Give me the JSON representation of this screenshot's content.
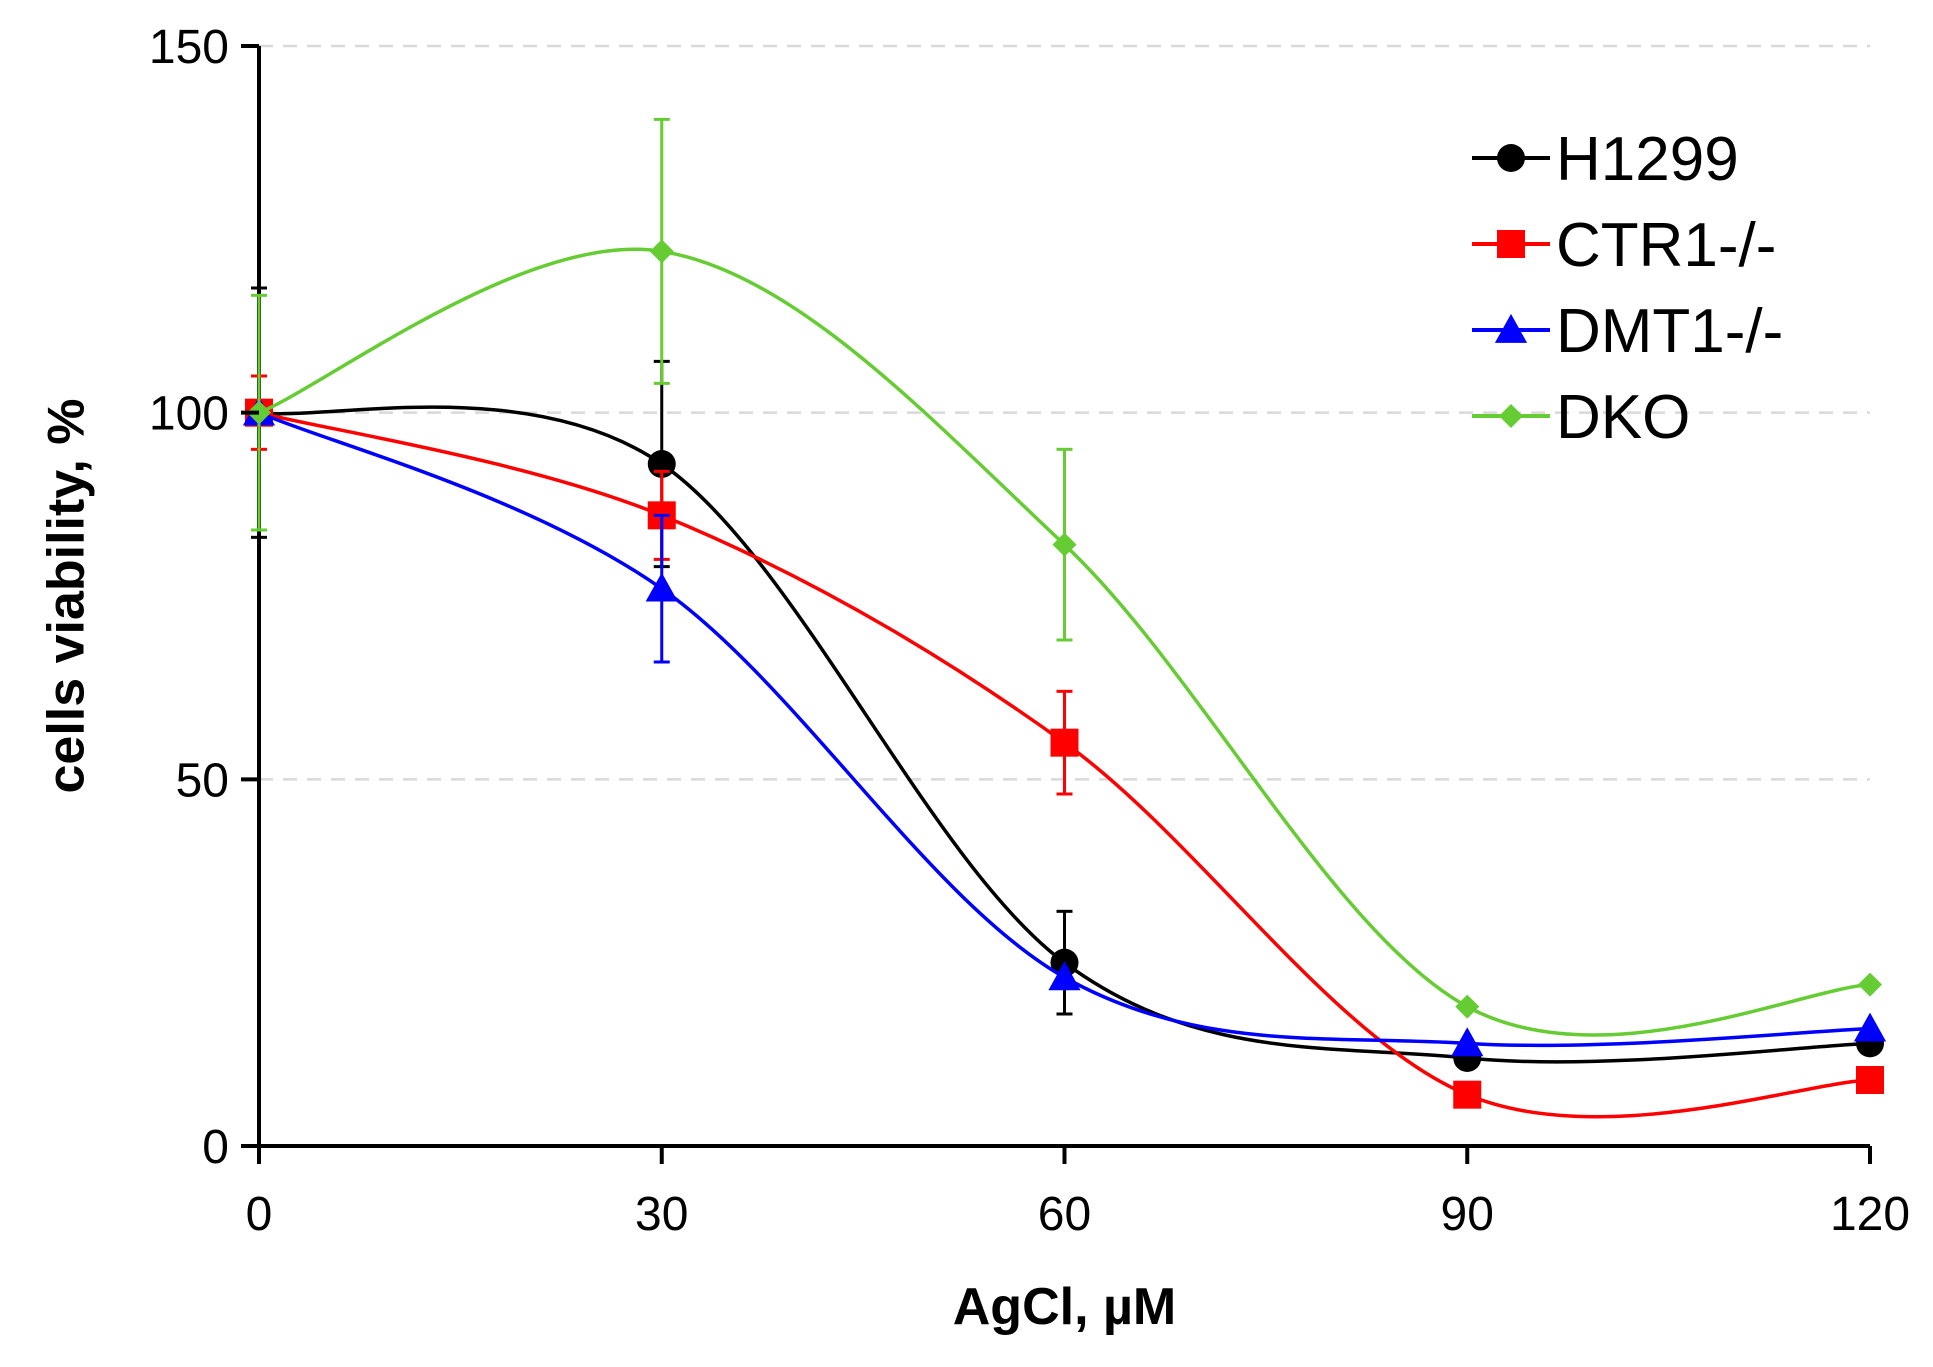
{
  "chart_data": {
    "type": "line",
    "title": "",
    "xlabel": "AgCl, µM",
    "ylabel": "cells viability, %",
    "x": [
      0,
      30,
      60,
      90,
      120
    ],
    "xlim": [
      0,
      120
    ],
    "ylim": [
      0,
      150
    ],
    "xticks": [
      "0",
      "30",
      "60",
      "90",
      "120"
    ],
    "yticks": [
      "0",
      "50",
      "100",
      "150"
    ],
    "grid": "horizontal dashed",
    "legend_position": "top-right",
    "series": [
      {
        "name": "H1299",
        "color": "#000000",
        "marker": "circle",
        "values": [
          100,
          93,
          25,
          12,
          14
        ],
        "errors": [
          17,
          14,
          7,
          0,
          0
        ]
      },
      {
        "name": "CTR1-/-",
        "color": "#ff0000",
        "marker": "square",
        "values": [
          100,
          86,
          55,
          7,
          9
        ],
        "errors": [
          5,
          6,
          7,
          0,
          0
        ]
      },
      {
        "name": "DMT1-/-",
        "color": "#0000ff",
        "marker": "triangle",
        "values": [
          100,
          76,
          23,
          14,
          16
        ],
        "errors": [
          0,
          10,
          0,
          0,
          0
        ]
      },
      {
        "name": "DKO",
        "color": "#66cc33",
        "marker": "diamond",
        "values": [
          100,
          122,
          82,
          19,
          22
        ],
        "errors": [
          16,
          18,
          13,
          0,
          0
        ]
      }
    ]
  }
}
